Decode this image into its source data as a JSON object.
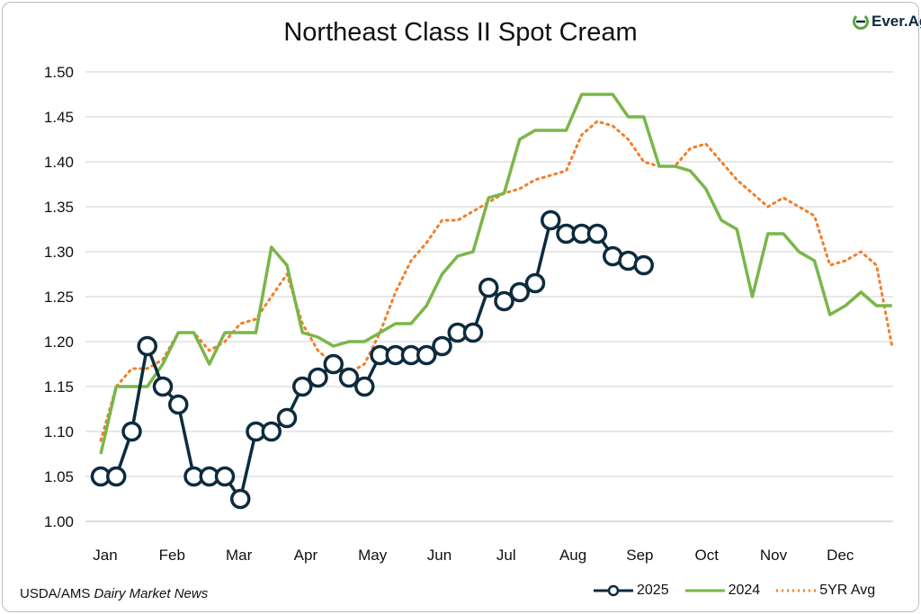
{
  "chart_data": {
    "type": "line",
    "title": "Northeast Class II Spot Cream",
    "xlabel": "",
    "ylabel": "",
    "ylim": [
      1.0,
      1.5
    ],
    "yticks": [
      "1.00",
      "1.05",
      "1.10",
      "1.15",
      "1.20",
      "1.25",
      "1.30",
      "1.35",
      "1.40",
      "1.45",
      "1.50"
    ],
    "xtick_labels": [
      "Jan",
      "Feb",
      "Mar",
      "Apr",
      "May",
      "Jun",
      "Jul",
      "Aug",
      "Sep",
      "Oct",
      "Nov",
      "Dec"
    ],
    "x_unit": "week",
    "grid": true,
    "legend_position": "bottom-right",
    "series": [
      {
        "name": "2025",
        "color": "#0d2b3e",
        "style": "line-markers",
        "values": [
          1.05,
          1.05,
          1.1,
          1.195,
          1.15,
          1.13,
          1.05,
          1.05,
          1.05,
          1.025,
          1.1,
          1.1,
          1.115,
          1.15,
          1.16,
          1.175,
          1.16,
          1.15,
          1.185,
          1.185,
          1.185,
          1.185,
          1.195,
          1.21,
          1.21,
          1.26,
          1.245,
          1.255,
          1.265,
          1.335,
          1.32,
          1.32,
          1.32,
          1.295,
          1.29,
          1.285
        ]
      },
      {
        "name": "2024",
        "color": "#7ab648",
        "style": "solid",
        "values": [
          1.075,
          1.15,
          1.15,
          1.15,
          1.175,
          1.21,
          1.21,
          1.175,
          1.21,
          1.21,
          1.21,
          1.305,
          1.285,
          1.21,
          1.205,
          1.195,
          1.2,
          1.2,
          1.21,
          1.22,
          1.22,
          1.24,
          1.275,
          1.295,
          1.3,
          1.36,
          1.365,
          1.425,
          1.435,
          1.435,
          1.435,
          1.475,
          1.475,
          1.475,
          1.45,
          1.45,
          1.395,
          1.395,
          1.39,
          1.37,
          1.335,
          1.325,
          1.25,
          1.32,
          1.32,
          1.3,
          1.29,
          1.23,
          1.24,
          1.255,
          1.24,
          1.24
        ]
      },
      {
        "name": "5YR Avg",
        "color": "#f07f2c",
        "style": "dotted",
        "values": [
          1.09,
          1.15,
          1.17,
          1.17,
          1.18,
          1.21,
          1.21,
          1.19,
          1.2,
          1.22,
          1.225,
          1.25,
          1.275,
          1.22,
          1.19,
          1.175,
          1.165,
          1.175,
          1.21,
          1.255,
          1.29,
          1.31,
          1.335,
          1.335,
          1.345,
          1.355,
          1.365,
          1.37,
          1.38,
          1.385,
          1.39,
          1.43,
          1.445,
          1.44,
          1.425,
          1.4,
          1.395,
          1.395,
          1.415,
          1.42,
          1.4,
          1.38,
          1.365,
          1.35,
          1.36,
          1.35,
          1.34,
          1.285,
          1.29,
          1.3,
          1.285,
          1.195
        ]
      }
    ]
  },
  "source": {
    "prefix": "USDA/AMS ",
    "italic": "Dairy Market News"
  },
  "logo_text": "Ever.Ag"
}
